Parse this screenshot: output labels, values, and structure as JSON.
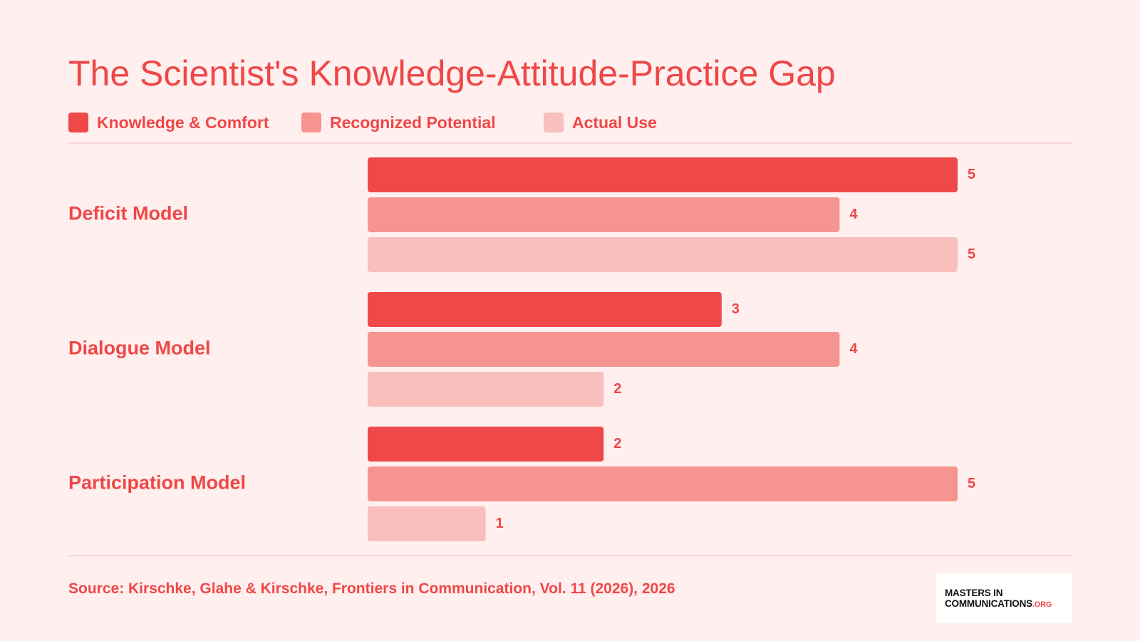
{
  "chart_data": {
    "type": "bar",
    "orientation": "horizontal",
    "title": "The Scientist's Knowledge-Attitude-Practice Gap",
    "categories": [
      "Deficit Model",
      "Dialogue Model",
      "Participation Model"
    ],
    "series": [
      {
        "name": "Knowledge & Comfort",
        "color": "#ef4848",
        "values": [
          5,
          3,
          2
        ]
      },
      {
        "name": "Recognized Potential",
        "color": "#f69590",
        "values": [
          4,
          4,
          5
        ]
      },
      {
        "name": "Actual Use",
        "color": "#f9bfbd",
        "values": [
          5,
          2,
          1
        ]
      }
    ],
    "xlim": [
      0,
      5
    ],
    "grid": false,
    "legend_position": "top-left"
  },
  "source": "Source: Kirschke, Glahe & Kirschke, Frontiers in Communication, Vol. 11 (2026), 2026",
  "logo": {
    "line1": "MASTERS IN",
    "line2": "COMMUNICATIONS",
    "suffix": ".ORG"
  },
  "colors": {
    "background": "#ffefef",
    "accent": "#ef4747",
    "rule": "#f6d4d4"
  }
}
